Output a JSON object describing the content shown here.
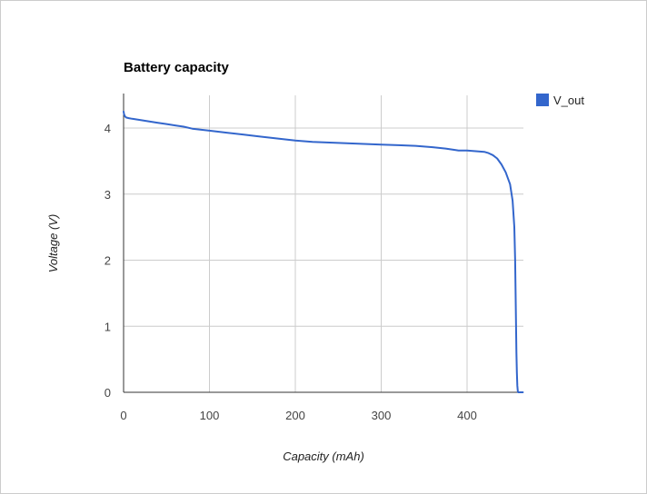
{
  "chart_data": {
    "type": "line",
    "title": "Battery capacity",
    "xlabel": "Capacity (mAh)",
    "ylabel": "Voltage (V)",
    "xlim": [
      0,
      465
    ],
    "ylim": [
      0,
      4.5
    ],
    "x_ticks": [
      0,
      100,
      200,
      300,
      400
    ],
    "y_ticks": [
      0,
      1,
      2,
      3,
      4
    ],
    "grid": true,
    "legend_position": "right",
    "series": [
      {
        "name": "V_out",
        "color": "#3366cc",
        "x": [
          0,
          0.5,
          1.5,
          3,
          6,
          10,
          20,
          30,
          40,
          50,
          60,
          70,
          80,
          100,
          120,
          140,
          160,
          180,
          200,
          220,
          240,
          260,
          280,
          300,
          320,
          340,
          360,
          375,
          385,
          390,
          400,
          410,
          420,
          425,
          430,
          435,
          440,
          445,
          450,
          453,
          455,
          456,
          456.5,
          457,
          457.5,
          458,
          458.5,
          459,
          459.5,
          460,
          465
        ],
        "y": [
          4.25,
          4.21,
          4.18,
          4.16,
          4.15,
          4.14,
          4.12,
          4.1,
          4.08,
          4.06,
          4.04,
          4.02,
          3.99,
          3.96,
          3.93,
          3.9,
          3.87,
          3.84,
          3.81,
          3.79,
          3.78,
          3.77,
          3.76,
          3.75,
          3.74,
          3.73,
          3.71,
          3.69,
          3.67,
          3.66,
          3.66,
          3.65,
          3.64,
          3.62,
          3.59,
          3.54,
          3.45,
          3.33,
          3.15,
          2.9,
          2.5,
          2.0,
          1.5,
          1.0,
          0.6,
          0.3,
          0.1,
          0.02,
          0.0,
          0.0,
          0.0
        ]
      }
    ]
  }
}
